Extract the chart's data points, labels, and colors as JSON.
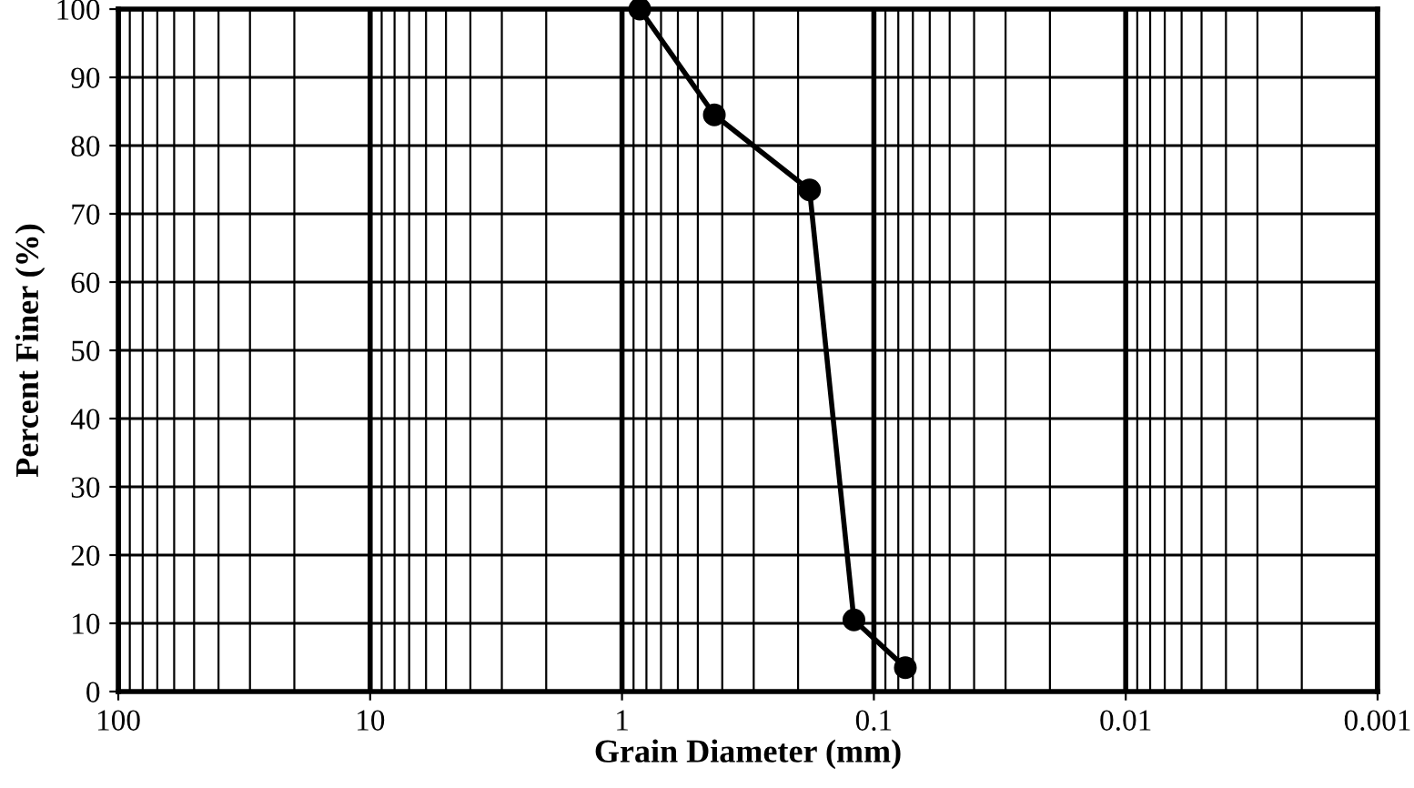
{
  "chart_data": {
    "type": "line",
    "xlabel": "Grain Diameter (mm)",
    "ylabel": "Percent Finer (%)",
    "x": [
      0.85,
      0.43,
      0.18,
      0.12,
      0.075
    ],
    "series": [
      {
        "color": "#000000",
        "values": [
          100,
          84.5,
          73.5,
          10.5,
          3.5
        ]
      }
    ],
    "log": "x",
    "xlim": [
      100,
      0.001
    ],
    "xticks": [
      100,
      10,
      1,
      0.1,
      0.01,
      0.001
    ],
    "ylim": [
      0,
      100
    ],
    "yticks": [
      0,
      10,
      20,
      30,
      40,
      50,
      60,
      70,
      80,
      90,
      100
    ],
    "grid": true,
    "marker": "circle",
    "line_style": "solid"
  }
}
